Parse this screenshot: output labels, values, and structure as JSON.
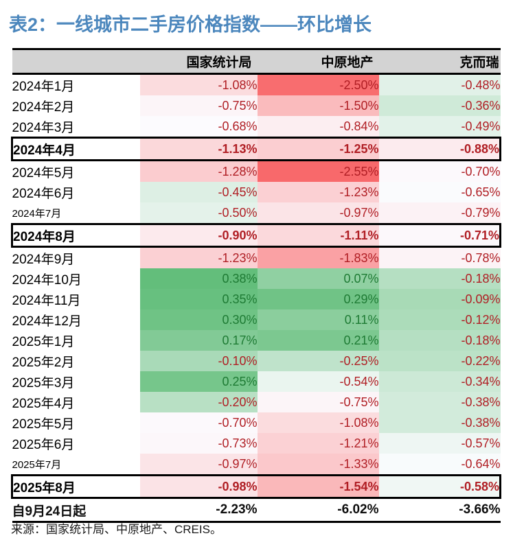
{
  "page": {
    "title": "表2：一线城市二手房价格指数——环比增长",
    "title_color": "#4C87BD",
    "source": "来源：国家统计局、中原地产、CREIS。"
  },
  "chart_data": {
    "type": "table",
    "title": "一线城市二手房价格指数——环比增长",
    "columns": [
      "国家统计局",
      "中原地产",
      "克而瑞"
    ],
    "unit": "%",
    "header_bg": "#D3D3D3",
    "border_color": "#000000",
    "text_colors": {
      "negative": "#B01E24",
      "positive": "#1E7B34",
      "summary": "#0d0d0d"
    },
    "color_scale": {
      "min_value": -2.55,
      "mid_value": -0.665,
      "max_value": 0.38,
      "min_color": "#F8696B",
      "mid_color": "#FCFCFF",
      "max_color": "#63BE7B"
    },
    "rows": [
      {
        "label": "2024年1月",
        "values": [
          -1.08,
          -2.5,
          -0.48
        ]
      },
      {
        "label": "2024年2月",
        "values": [
          -0.75,
          -1.5,
          -0.36
        ]
      },
      {
        "label": "2024年3月",
        "values": [
          -0.68,
          -0.84,
          -0.49
        ]
      },
      {
        "label": "2024年4月",
        "values": [
          -1.13,
          -1.25,
          -0.88
        ],
        "highlighted": true
      },
      {
        "label": "2024年5月",
        "values": [
          -1.28,
          -2.55,
          -0.7
        ]
      },
      {
        "label": "2024年6月",
        "values": [
          -0.45,
          -1.23,
          -0.65
        ]
      },
      {
        "label": "2024年7月",
        "values": [
          -0.5,
          -0.97,
          -0.79
        ],
        "small": true
      },
      {
        "label": "2024年8月",
        "values": [
          -0.9,
          -1.11,
          -0.71
        ],
        "highlighted": true
      },
      {
        "label": "2024年9月",
        "values": [
          -1.23,
          -1.83,
          -0.78
        ]
      },
      {
        "label": "2024年10月",
        "values": [
          0.38,
          0.07,
          -0.18
        ]
      },
      {
        "label": "2024年11月",
        "values": [
          0.35,
          0.29,
          -0.09
        ]
      },
      {
        "label": "2024年12月",
        "values": [
          0.3,
          0.11,
          -0.12
        ]
      },
      {
        "label": "2025年1月",
        "values": [
          0.17,
          0.21,
          -0.18
        ]
      },
      {
        "label": "2025年2月",
        "values": [
          -0.1,
          -0.25,
          -0.22
        ]
      },
      {
        "label": "2025年3月",
        "values": [
          0.25,
          -0.54,
          -0.34
        ]
      },
      {
        "label": "2025年4月",
        "values": [
          -0.2,
          -0.75,
          -0.38
        ]
      },
      {
        "label": "2025年5月",
        "values": [
          -0.7,
          -1.08,
          -0.38
        ]
      },
      {
        "label": "2025年6月",
        "values": [
          -0.73,
          -1.21,
          -0.57
        ]
      },
      {
        "label": "2025年7月",
        "values": [
          -0.97,
          -1.33,
          -0.64
        ],
        "small": true
      },
      {
        "label": "2025年8月",
        "values": [
          -0.98,
          -1.54,
          -0.58
        ],
        "highlighted": true
      }
    ],
    "summary_row": {
      "label": "自9月24日起",
      "values": [
        -2.23,
        -6.02,
        -3.66
      ]
    }
  }
}
